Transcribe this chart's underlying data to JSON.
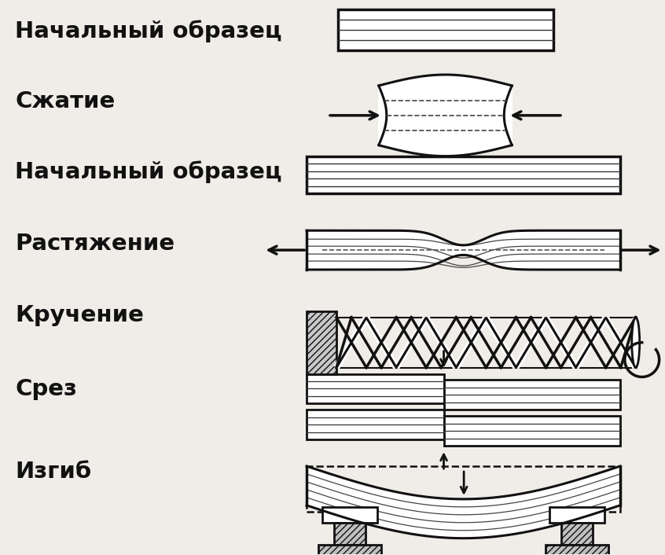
{
  "background_color": "#f0ede8",
  "labels": {
    "nachalny1": "Начальный образец",
    "szhatiye": "Сжатие",
    "nachalny2": "Начальный образец",
    "rastyazheniye": "Растяжение",
    "krucheniye": "Кручение",
    "srez": "Срез",
    "izgib": "Изгиб"
  },
  "line_color": "#111111"
}
